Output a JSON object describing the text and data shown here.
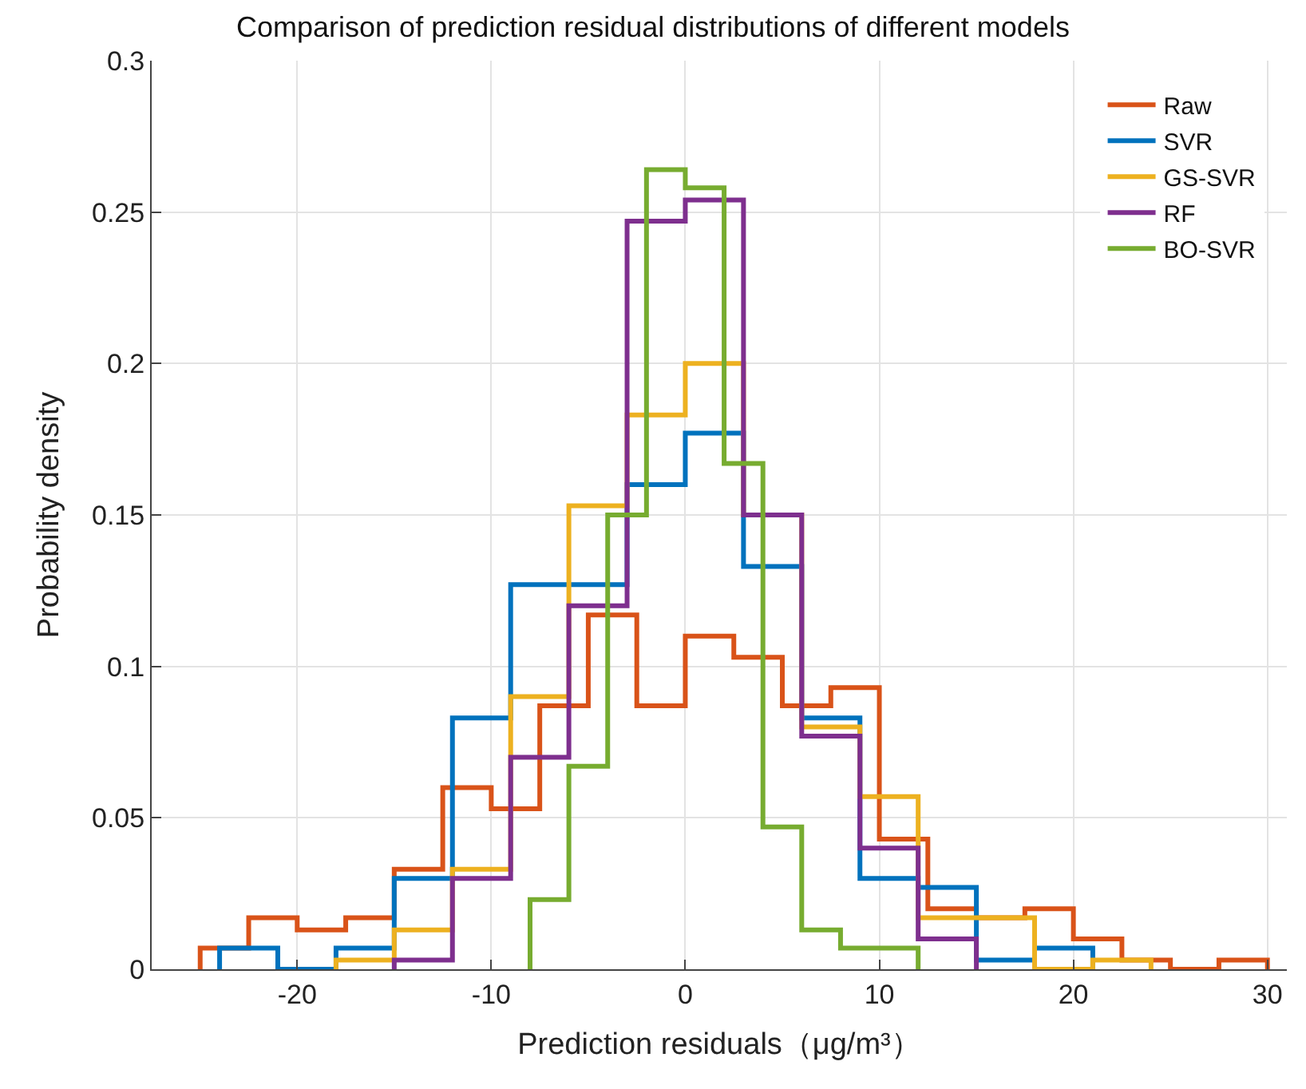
{
  "chart_data": {
    "type": "step",
    "title": "Comparison of prediction residual distributions of different models",
    "xlabel": "Prediction residuals（μg/m³）",
    "ylabel": "Probability density",
    "series": [
      {
        "name": "Raw",
        "color": "#d95319",
        "x": [
          -25,
          -25,
          -22.5,
          -20,
          -17.5,
          -15,
          -12.5,
          -10,
          -7.5,
          -5,
          -2.5,
          0,
          2.5,
          5,
          7.5,
          10,
          12.5,
          15,
          17.5,
          20,
          22.5,
          25,
          27.5,
          30
        ],
        "values": [
          0,
          0.007,
          0.017,
          0.013,
          0.017,
          0.033,
          0.06,
          0.053,
          0.087,
          0.117,
          0.087,
          0.11,
          0.103,
          0.087,
          0.093,
          0.043,
          0.02,
          0.017,
          0.02,
          0.01,
          0.003,
          0,
          0.003,
          0
        ]
      },
      {
        "name": "SVR",
        "color": "#0072bd",
        "x": [
          -24,
          -24,
          -21,
          -18,
          -15,
          -12,
          -9,
          -6,
          -3,
          0,
          3,
          6,
          9,
          12,
          15,
          18,
          21
        ],
        "values": [
          0,
          0.007,
          0,
          0.007,
          0.03,
          0.083,
          0.127,
          0.127,
          0.16,
          0.177,
          0.133,
          0.083,
          0.03,
          0.027,
          0.003,
          0.007,
          0
        ]
      },
      {
        "name": "GS-SVR",
        "color": "#edb120",
        "x": [
          -18,
          -18,
          -15,
          -12,
          -9,
          -6,
          -3,
          0,
          3,
          6,
          9,
          12,
          15,
          18,
          21,
          24
        ],
        "values": [
          0,
          0.003,
          0.013,
          0.033,
          0.09,
          0.153,
          0.183,
          0.2,
          0.15,
          0.08,
          0.057,
          0.017,
          0.017,
          0,
          0.003,
          0
        ]
      },
      {
        "name": "RF",
        "color": "#7e2f8e",
        "x": [
          -15,
          -15,
          -12,
          -9,
          -6,
          -3,
          0,
          3,
          6,
          9,
          12,
          15
        ],
        "values": [
          0,
          0.003,
          0.03,
          0.07,
          0.12,
          0.247,
          0.254,
          0.15,
          0.077,
          0.04,
          0.01,
          0
        ]
      },
      {
        "name": "BO-SVR",
        "color": "#77ac30",
        "x": [
          -8,
          -8,
          -6,
          -4,
          -2,
          0,
          2,
          4,
          6,
          8,
          10,
          12
        ],
        "values": [
          0,
          0.023,
          0.067,
          0.15,
          0.264,
          0.258,
          0.167,
          0.047,
          0.013,
          0.007,
          0.007,
          0
        ]
      }
    ],
    "xlim": [
      -27.5,
      31
    ],
    "xticks": [
      -20,
      -10,
      0,
      10,
      20,
      30
    ],
    "ylim": [
      0,
      0.3
    ],
    "yticks": [
      0,
      0.05,
      0.1,
      0.15,
      0.2,
      0.25,
      0.3
    ],
    "grid": true,
    "legend": "top right",
    "line_style": "solid"
  }
}
